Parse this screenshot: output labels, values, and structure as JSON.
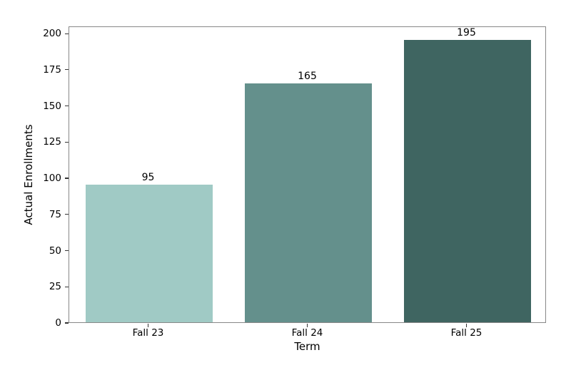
{
  "chart_data": {
    "type": "bar",
    "categories": [
      "Fall 23",
      "Fall 24",
      "Fall 25"
    ],
    "values": [
      95,
      165,
      195
    ],
    "bar_value_labels": [
      "95",
      "165",
      "195"
    ],
    "bar_colors": [
      "#a0cac5",
      "#64908c",
      "#3f6561"
    ],
    "title": "",
    "xlabel": "Term",
    "ylabel": "Actual Enrollments",
    "ylim": [
      0,
      205
    ],
    "yticks": [
      0,
      25,
      50,
      75,
      100,
      125,
      150,
      175,
      200
    ],
    "grid": false,
    "legend": null
  },
  "styles": {
    "spine_color": "#888888",
    "tick_color": "#333333",
    "text_color": "#000000",
    "background_color": "#ffffff"
  }
}
